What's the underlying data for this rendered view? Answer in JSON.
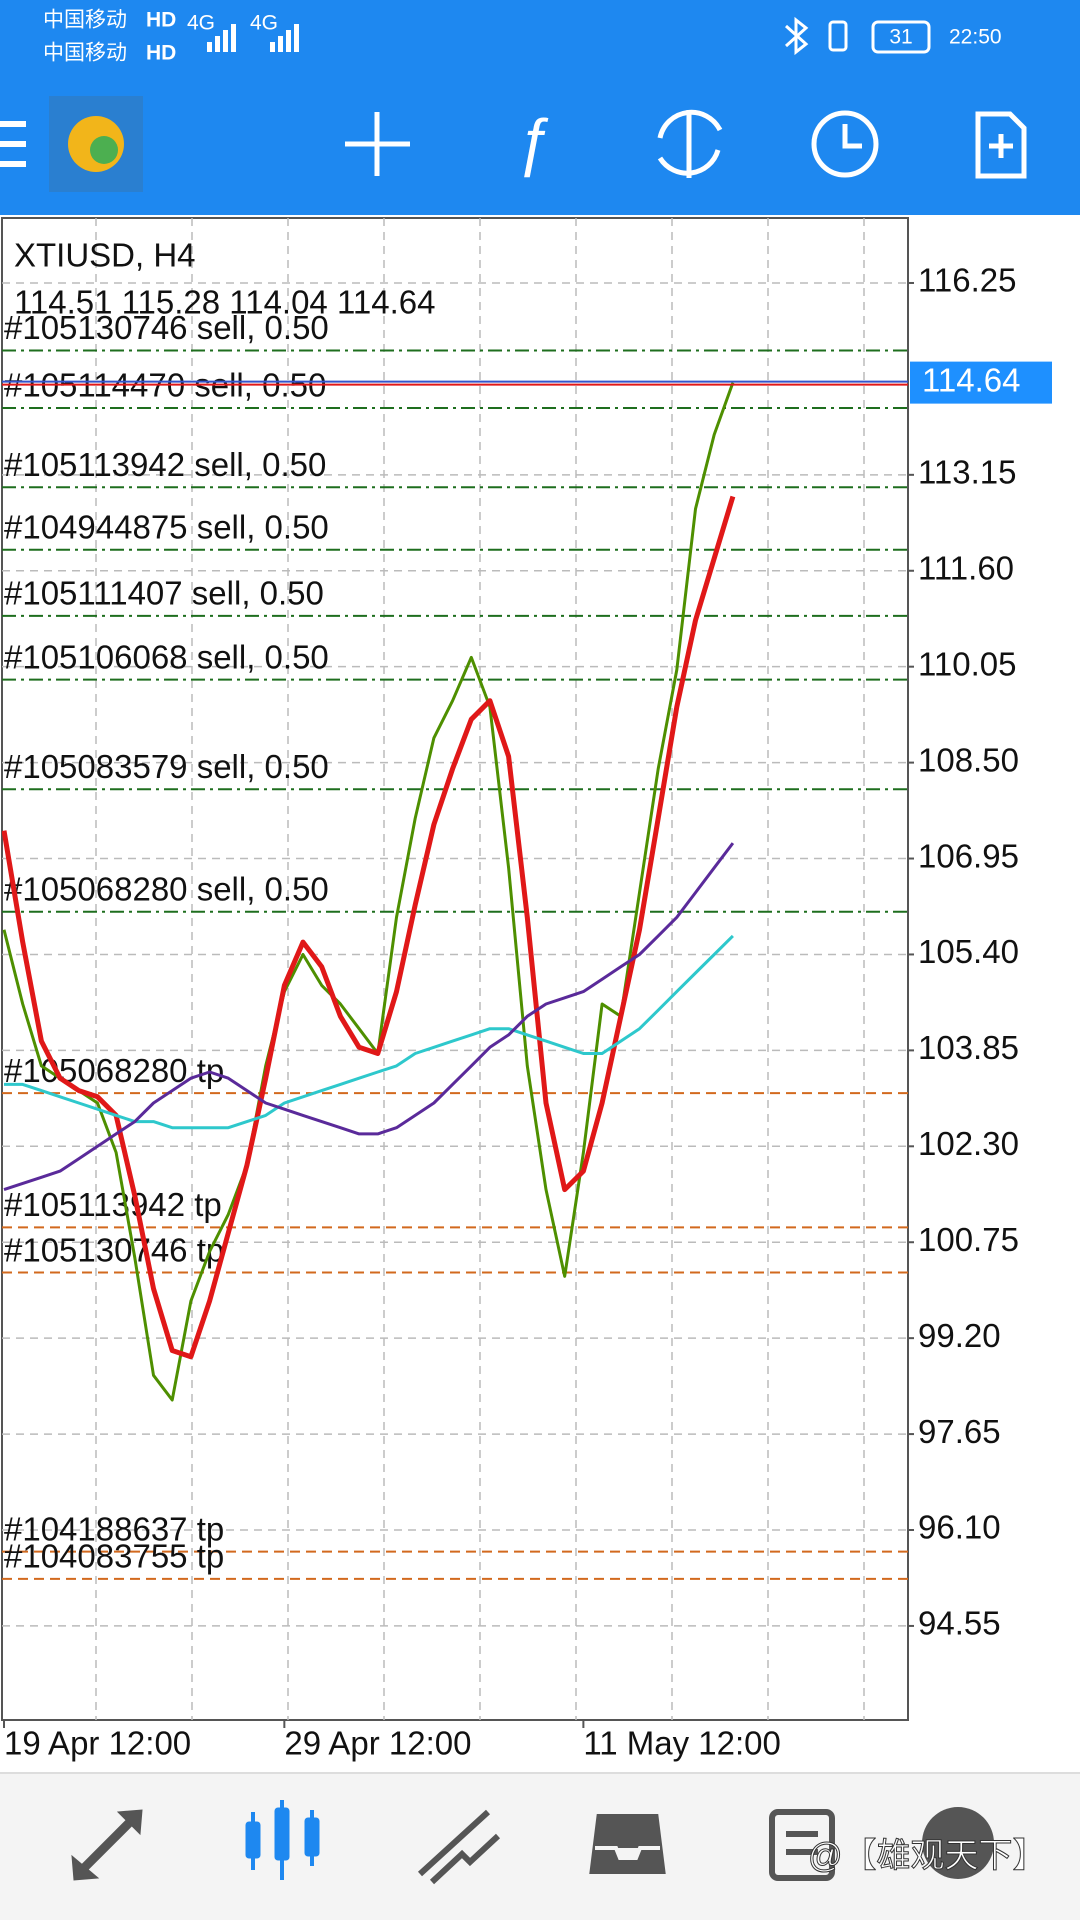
{
  "status_bar": {
    "carriers": [
      "中国移动",
      "中国移动"
    ],
    "hd": "HD",
    "network": "4G",
    "battery": "31",
    "time": "22:50"
  },
  "chart_data": {
    "type": "line",
    "symbol": "XTIUSD, H4",
    "ohlc": "114.51 115.28 114.04 114.64",
    "categories": [
      "19 Apr 12:00",
      null,
      null,
      null,
      null,
      null,
      null,
      null,
      null,
      null,
      null,
      null,
      null,
      null,
      null,
      "29 Apr 12:00",
      null,
      null,
      null,
      null,
      null,
      null,
      null,
      null,
      null,
      null,
      null,
      null,
      null,
      null,
      null,
      "11 May 12:00",
      null,
      null,
      null,
      null,
      null,
      null,
      null,
      null
    ],
    "series": [
      {
        "color": "#4e8f00",
        "values": [
          105.8,
          104.6,
          103.6,
          103.4,
          103.2,
          103.0,
          102.2,
          100.5,
          98.6,
          98.2,
          99.8,
          100.6,
          101.2,
          102.0,
          103.6,
          104.8,
          105.4,
          104.9,
          104.6,
          104.2,
          103.8,
          106.0,
          107.6,
          108.9,
          109.5,
          110.2,
          109.4,
          106.8,
          103.6,
          101.6,
          100.2,
          102.2,
          104.6,
          104.4,
          106.4,
          108.4,
          110.0,
          112.6,
          113.8,
          114.64
        ]
      },
      {
        "color": "#e01818",
        "values": [
          107.4,
          105.6,
          104.0,
          103.4,
          103.2,
          103.1,
          102.8,
          101.5,
          100.0,
          99.0,
          98.9,
          99.8,
          100.9,
          102.0,
          103.4,
          104.9,
          105.6,
          105.2,
          104.4,
          103.9,
          103.8,
          104.8,
          106.2,
          107.5,
          108.4,
          109.2,
          109.5,
          108.6,
          106.0,
          103.0,
          101.6,
          101.9,
          103.0,
          104.4,
          105.8,
          107.6,
          109.4,
          110.8,
          111.8,
          112.8
        ]
      },
      {
        "color": "#2ec8cc",
        "values": [
          103.3,
          103.3,
          103.2,
          103.1,
          103.0,
          102.9,
          102.8,
          102.7,
          102.7,
          102.6,
          102.6,
          102.6,
          102.6,
          102.7,
          102.8,
          103.0,
          103.1,
          103.2,
          103.3,
          103.4,
          103.5,
          103.6,
          103.8,
          103.9,
          104.0,
          104.1,
          104.2,
          104.2,
          104.1,
          104.0,
          103.9,
          103.8,
          103.8,
          104.0,
          104.2,
          104.5,
          104.8,
          105.1,
          105.4,
          105.7
        ]
      },
      {
        "color": "#5a2a9a",
        "values": [
          101.6,
          101.7,
          101.8,
          101.9,
          102.1,
          102.3,
          102.5,
          102.7,
          103.0,
          103.2,
          103.4,
          103.5,
          103.4,
          103.2,
          103.0,
          102.9,
          102.8,
          102.7,
          102.6,
          102.5,
          102.5,
          102.6,
          102.8,
          103.0,
          103.3,
          103.6,
          103.9,
          104.1,
          104.4,
          104.6,
          104.7,
          104.8,
          105.0,
          105.2,
          105.4,
          105.7,
          106.0,
          106.4,
          106.8,
          107.2
        ]
      }
    ],
    "ylim": [
      93.03,
      117.3
    ],
    "yticks": [
      116.25,
      113.15,
      {
        "value": 111.6,
        "label": "111.60"
      },
      110.05,
      {
        "value": 108.5,
        "label": "108.50"
      },
      106.95,
      {
        "value": 105.4,
        "label": "105.40"
      },
      103.85,
      {
        "value": 102.3,
        "label": "102.30"
      },
      100.75,
      {
        "value": 99.2,
        "label": "99.20"
      },
      97.65,
      {
        "value": 96.1,
        "label": "96.10"
      },
      94.55
    ],
    "grid": true,
    "current_price": 114.64,
    "current_price_color": "#1e90ff",
    "sell_color": "#1e6e1e",
    "sell_orders": [
      {
        "label": "#105130746 sell, 0.50",
        "price": 115.16
      },
      {
        "label": "#105114470 sell, 0.50",
        "price": 114.23
      },
      {
        "label": "#105113942 sell, 0.50",
        "price": 112.95
      },
      {
        "label": "#104944875 sell, 0.50",
        "price": 111.94
      },
      {
        "label": "#105111407 sell, 0.50",
        "price": 110.87
      },
      {
        "label": "#105106068 sell, 0.50",
        "price": 109.84
      },
      {
        "label": "#105083579 sell, 0.50",
        "price": 108.07
      },
      {
        "label": "#105068280 sell, 0.50",
        "price": 106.09
      }
    ],
    "tp_color": "#d2691e",
    "tp_orders": [
      {
        "label": "#105068280 tp",
        "price": 103.16
      },
      {
        "label": "#105113942 tp",
        "price": 100.99
      },
      {
        "label": "#105130746 tp",
        "price": 100.26
      },
      {
        "label": "#104188637 tp",
        "price": 95.75
      },
      {
        "label": "#104083755 tp",
        "price": 95.31
      }
    ]
  },
  "watermark": "@【雄观天下】"
}
